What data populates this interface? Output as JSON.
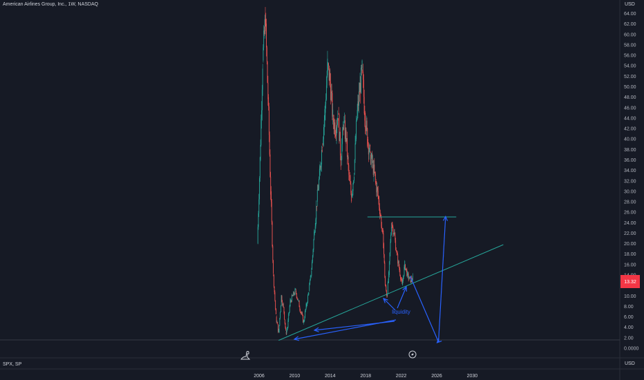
{
  "header": {
    "title": "American Airlines Group, Inc., 1W, NASDAQ",
    "currency": "USD",
    "currency_bottom": "USD",
    "compare_label": "SPX, SP"
  },
  "colors": {
    "background": "#161a25",
    "up": "#26a69a",
    "down": "#ef5350",
    "annotation": "#2962ff",
    "trendline": "#26a69a",
    "last_price_bg": "#f23645"
  },
  "icons": [
    "dino-icon",
    "lightning-icon"
  ],
  "price_badge": {
    "value": "13.32"
  },
  "annotation_text": "liquidity",
  "chart_data": {
    "type": "candlestick",
    "title": "American Airlines Group, Inc., 1W, NASDAQ",
    "xlabel": "",
    "ylabel": "",
    "xlim": [
      2005,
      2032
    ],
    "ylim": [
      0,
      65
    ],
    "x_ticks": [
      "2006",
      "2010",
      "2014",
      "2018",
      "2022",
      "2026",
      "2030"
    ],
    "y_ticks": [
      "64.00",
      "62.00",
      "60.00",
      "58.00",
      "56.00",
      "54.00",
      "52.00",
      "50.00",
      "48.00",
      "46.00",
      "44.00",
      "42.00",
      "40.00",
      "38.00",
      "36.00",
      "34.00",
      "32.00",
      "30.00",
      "28.00",
      "26.00",
      "24.00",
      "22.00",
      "20.00",
      "18.00",
      "16.00",
      "14.00",
      "12.00",
      "10.00",
      "8.00",
      "6.00",
      "4.00",
      "2.00",
      "0.0000"
    ],
    "series": [
      {
        "name": "AAL",
        "x": [
          2005.8,
          2006.1,
          2006.4,
          2006.7,
          2007.0,
          2007.3,
          2007.6,
          2007.9,
          2008.2,
          2008.5,
          2008.8,
          2009.0,
          2009.2,
          2009.5,
          2009.8,
          2010.1,
          2010.4,
          2010.7,
          2011.0,
          2011.3,
          2011.6,
          2011.9,
          2012.2,
          2012.5,
          2012.8,
          2013.1,
          2013.4,
          2013.7,
          2014.0,
          2014.3,
          2014.6,
          2014.9,
          2015.2,
          2015.5,
          2015.8,
          2016.1,
          2016.4,
          2016.7,
          2017.0,
          2017.3,
          2017.6,
          2017.9,
          2018.2,
          2018.5,
          2018.8,
          2019.1,
          2019.4,
          2019.7,
          2020.0,
          2020.2,
          2020.4,
          2020.6,
          2020.9,
          2021.2,
          2021.5,
          2021.8,
          2022.1,
          2022.4,
          2022.7,
          2023.0,
          2023.3
        ],
        "values": [
          20,
          36,
          55,
          63,
          48,
          30,
          14,
          6,
          3,
          10,
          7,
          3,
          4,
          9,
          10,
          11,
          9,
          7,
          5,
          8,
          11,
          15,
          22,
          28,
          33,
          39,
          45,
          54,
          51,
          44,
          42,
          45,
          36,
          43,
          40,
          33,
          29,
          34,
          44,
          49,
          53,
          45,
          40,
          37,
          35,
          32,
          29,
          25,
          20,
          12,
          10,
          14,
          24,
          22,
          18,
          15,
          12,
          16,
          14,
          13,
          13.32
        ]
      }
    ],
    "last_price": 13.32,
    "annotations": [
      {
        "type": "horizontal_line",
        "y": 25.1,
        "x_range": [
          2018.2,
          2028.2
        ]
      },
      {
        "type": "trendline",
        "from": [
          2008.2,
          1.5
        ],
        "to": [
          2033.5,
          19.8
        ]
      },
      {
        "type": "label",
        "text": "liquidity",
        "x": 2022.0,
        "y": 6.6
      },
      {
        "type": "projection_path",
        "points": [
          [
            2023.0,
            13.8
          ],
          [
            2026.2,
            1.2
          ],
          [
            2027.0,
            25.2
          ]
        ]
      }
    ],
    "grid": false,
    "legend": "none"
  }
}
